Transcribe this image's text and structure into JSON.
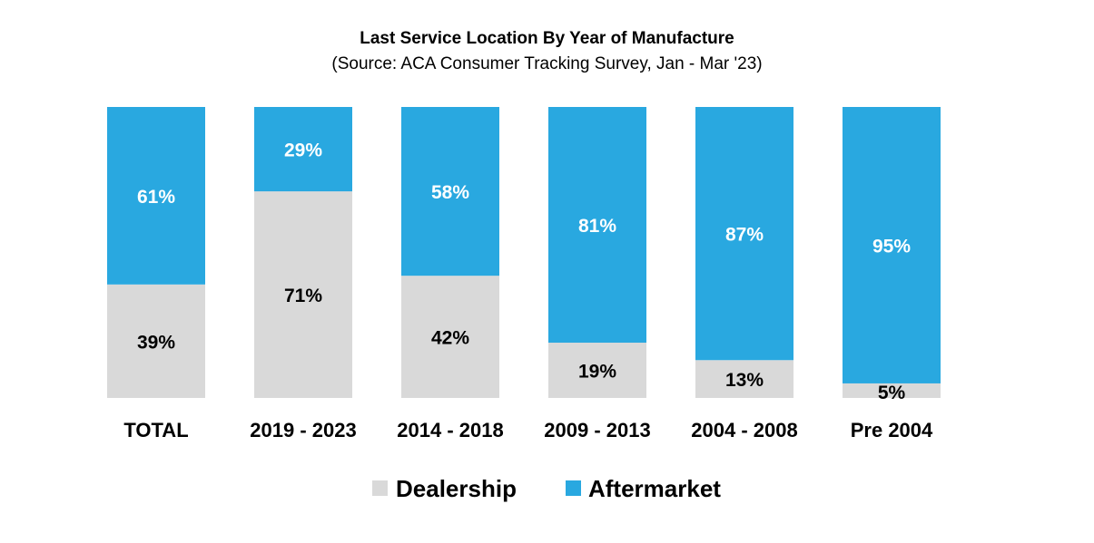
{
  "chart_data": {
    "type": "bar",
    "stacked": true,
    "title": "Last Service Location By Year of Manufacture",
    "subtitle": "(Source: ACA Consumer Tracking Survey, Jan - Mar '23)",
    "categories": [
      "TOTAL",
      "2019 - 2023",
      "2014 - 2018",
      "2009 - 2013",
      "2004 - 2008",
      "Pre 2004"
    ],
    "series": [
      {
        "name": "Dealership",
        "values": [
          39,
          71,
          42,
          19,
          13,
          5
        ],
        "color": "#d9d9d9",
        "label_color": "#000000"
      },
      {
        "name": "Aftermarket",
        "values": [
          61,
          29,
          58,
          81,
          87,
          95
        ],
        "color": "#29a8e0",
        "label_color": "#ffffff"
      }
    ],
    "value_suffix": "%",
    "ylim": [
      0,
      100
    ],
    "grid": false,
    "legend_position": "bottom"
  }
}
